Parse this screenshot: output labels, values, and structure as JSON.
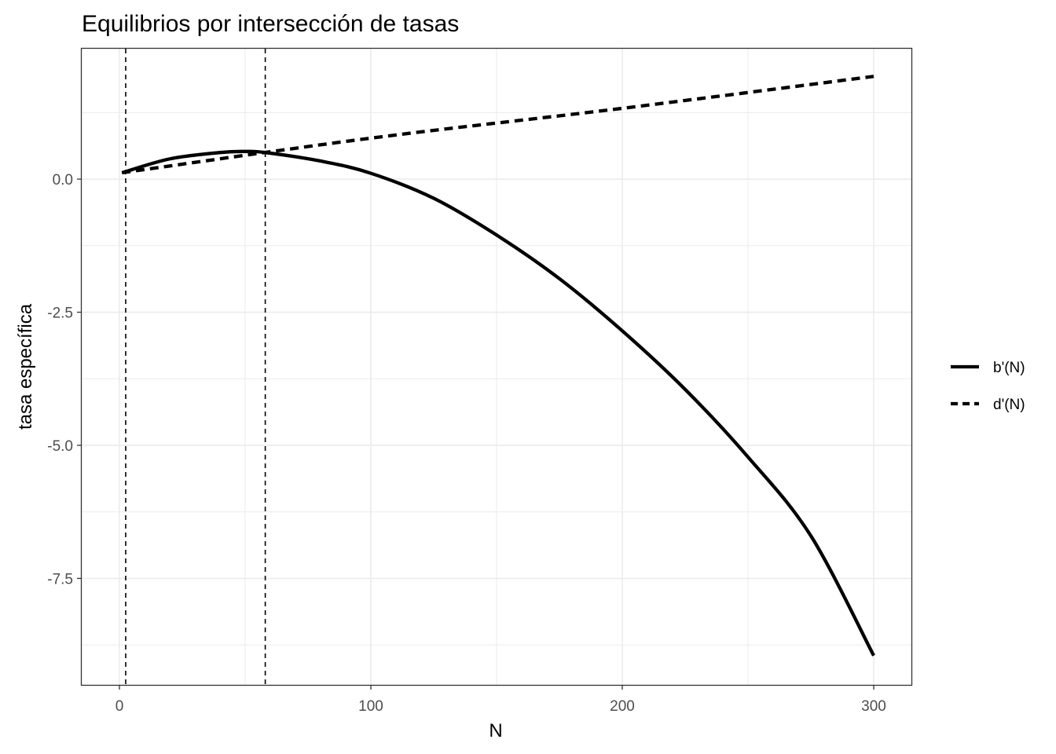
{
  "chart_data": {
    "type": "line",
    "title": "Equilibrios por intersección de tasas",
    "xlabel": "N",
    "ylabel": "tasa específica",
    "xlim": [
      -15,
      315
    ],
    "ylim": [
      -9.5,
      2.45
    ],
    "x_ticks": [
      0,
      100,
      200,
      300
    ],
    "x_tick_labels": [
      "0",
      "100",
      "200",
      "300"
    ],
    "y_ticks": [
      0.0,
      -2.5,
      -5.0,
      -7.5
    ],
    "y_tick_labels": [
      "0.0",
      "-2.5",
      "-5.0",
      "-7.5"
    ],
    "grid": true,
    "legend_position": "right",
    "series": [
      {
        "name": "b'(N)",
        "linetype": "solid",
        "color": "#000000",
        "x": [
          1,
          20,
          40,
          50,
          58,
          80,
          100,
          125,
          150,
          175,
          200,
          225,
          250,
          275,
          300
        ],
        "y": [
          0.12,
          0.38,
          0.5,
          0.52,
          0.5,
          0.34,
          0.11,
          -0.36,
          -1.05,
          -1.87,
          -2.85,
          -3.95,
          -5.22,
          -6.7,
          -8.95
        ]
      },
      {
        "name": "d'(N)",
        "linetype": "dashed",
        "color": "#000000",
        "x": [
          1,
          100,
          200,
          300
        ],
        "y": [
          0.12,
          0.77,
          1.33,
          1.93
        ]
      }
    ],
    "vlines": [
      {
        "x": 2.5,
        "linetype": "dashed"
      },
      {
        "x": 58,
        "linetype": "dashed"
      }
    ]
  }
}
